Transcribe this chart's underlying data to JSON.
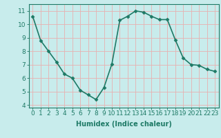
{
  "x": [
    0,
    1,
    2,
    3,
    4,
    5,
    6,
    7,
    8,
    9,
    10,
    11,
    12,
    13,
    14,
    15,
    16,
    17,
    18,
    19,
    20,
    21,
    22,
    23
  ],
  "y": [
    10.6,
    8.8,
    8.0,
    7.2,
    6.3,
    6.0,
    5.1,
    4.75,
    4.4,
    5.3,
    7.05,
    10.3,
    10.6,
    11.0,
    10.9,
    10.6,
    10.35,
    10.35,
    8.85,
    7.5,
    7.0,
    6.95,
    6.65,
    6.5
  ],
  "xlabel": "Humidex (Indice chaleur)",
  "line_color": "#1e7a66",
  "marker": "D",
  "marker_size": 2.5,
  "bg_color": "#c8ecec",
  "grid_color": "#e8f8f8",
  "xlim": [
    -0.5,
    23.5
  ],
  "ylim": [
    3.8,
    11.5
  ],
  "yticks": [
    4,
    5,
    6,
    7,
    8,
    9,
    10,
    11
  ],
  "xticks": [
    0,
    1,
    2,
    3,
    4,
    5,
    6,
    7,
    8,
    9,
    10,
    11,
    12,
    13,
    14,
    15,
    16,
    17,
    18,
    19,
    20,
    21,
    22,
    23
  ],
  "xlabel_fontsize": 7,
  "tick_fontsize": 6.5,
  "line_width": 1.2
}
